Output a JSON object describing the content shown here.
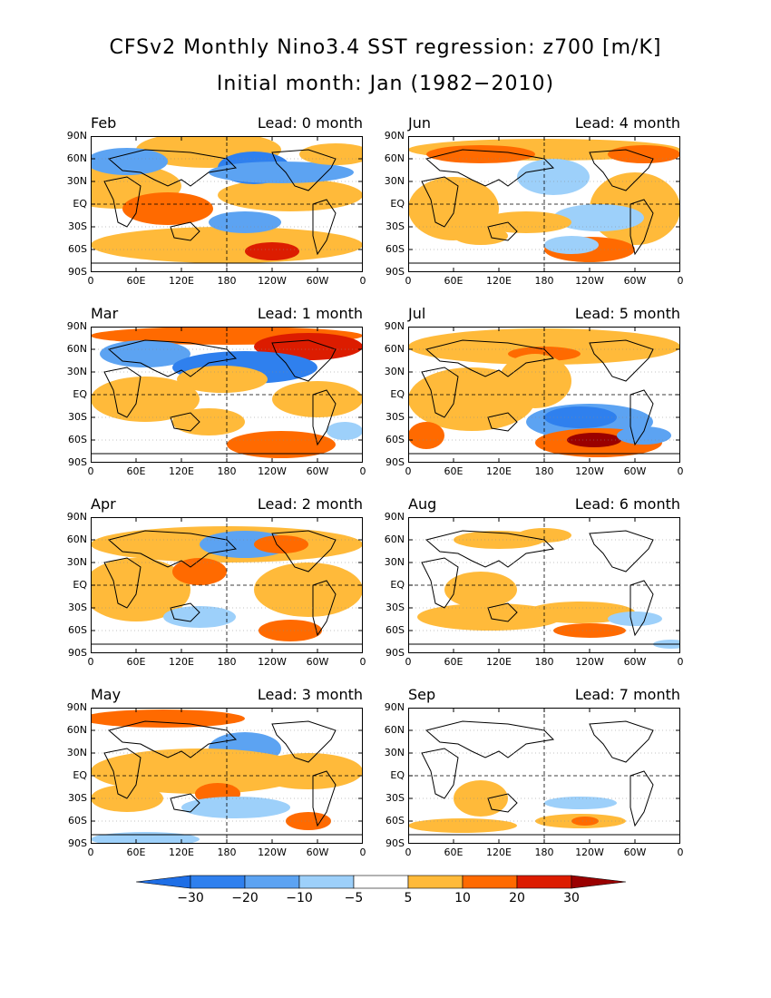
{
  "title": "CFSv2 Monthly Nino3.4 SST regression: z700 [m/K]",
  "subtitle": "Initial month: Jan (1982−2010)",
  "lat_labels": [
    "90N",
    "60N",
    "30N",
    "EQ",
    "30S",
    "60S",
    "90S"
  ],
  "lon_labels": [
    "0",
    "60E",
    "120E",
    "180",
    "120W",
    "60W",
    "0"
  ],
  "panels": [
    {
      "month": "Feb",
      "lead": "Lead: 0 month"
    },
    {
      "month": "Jun",
      "lead": "Lead: 4 month"
    },
    {
      "month": "Mar",
      "lead": "Lead: 1 month"
    },
    {
      "month": "Jul",
      "lead": "Lead: 5 month"
    },
    {
      "month": "Apr",
      "lead": "Lead: 2 month"
    },
    {
      "month": "Aug",
      "lead": "Lead: 6 month"
    },
    {
      "month": "May",
      "lead": "Lead: 3 month"
    },
    {
      "month": "Sep",
      "lead": "Lead: 7 month"
    }
  ],
  "colorbar": {
    "ticks": [
      "−30",
      "−20",
      "−10",
      "−5",
      "5",
      "10",
      "20",
      "30"
    ],
    "colors": [
      "#1e6ee6",
      "#2f80ee",
      "#5ca3f2",
      "#9dd0fa",
      "#ffffff",
      "#ffba3a",
      "#ff6a00",
      "#dc1c00",
      "#9a0000"
    ]
  },
  "colors": {
    "neg_strong": "#2f80ee",
    "neg_mid": "#5ca3f2",
    "neg_weak": "#9dd0fa",
    "pos_weak": "#ffba3a",
    "pos_mid": "#ff6a00",
    "pos_strong": "#dc1c00",
    "pos_max": "#9a0000"
  }
}
